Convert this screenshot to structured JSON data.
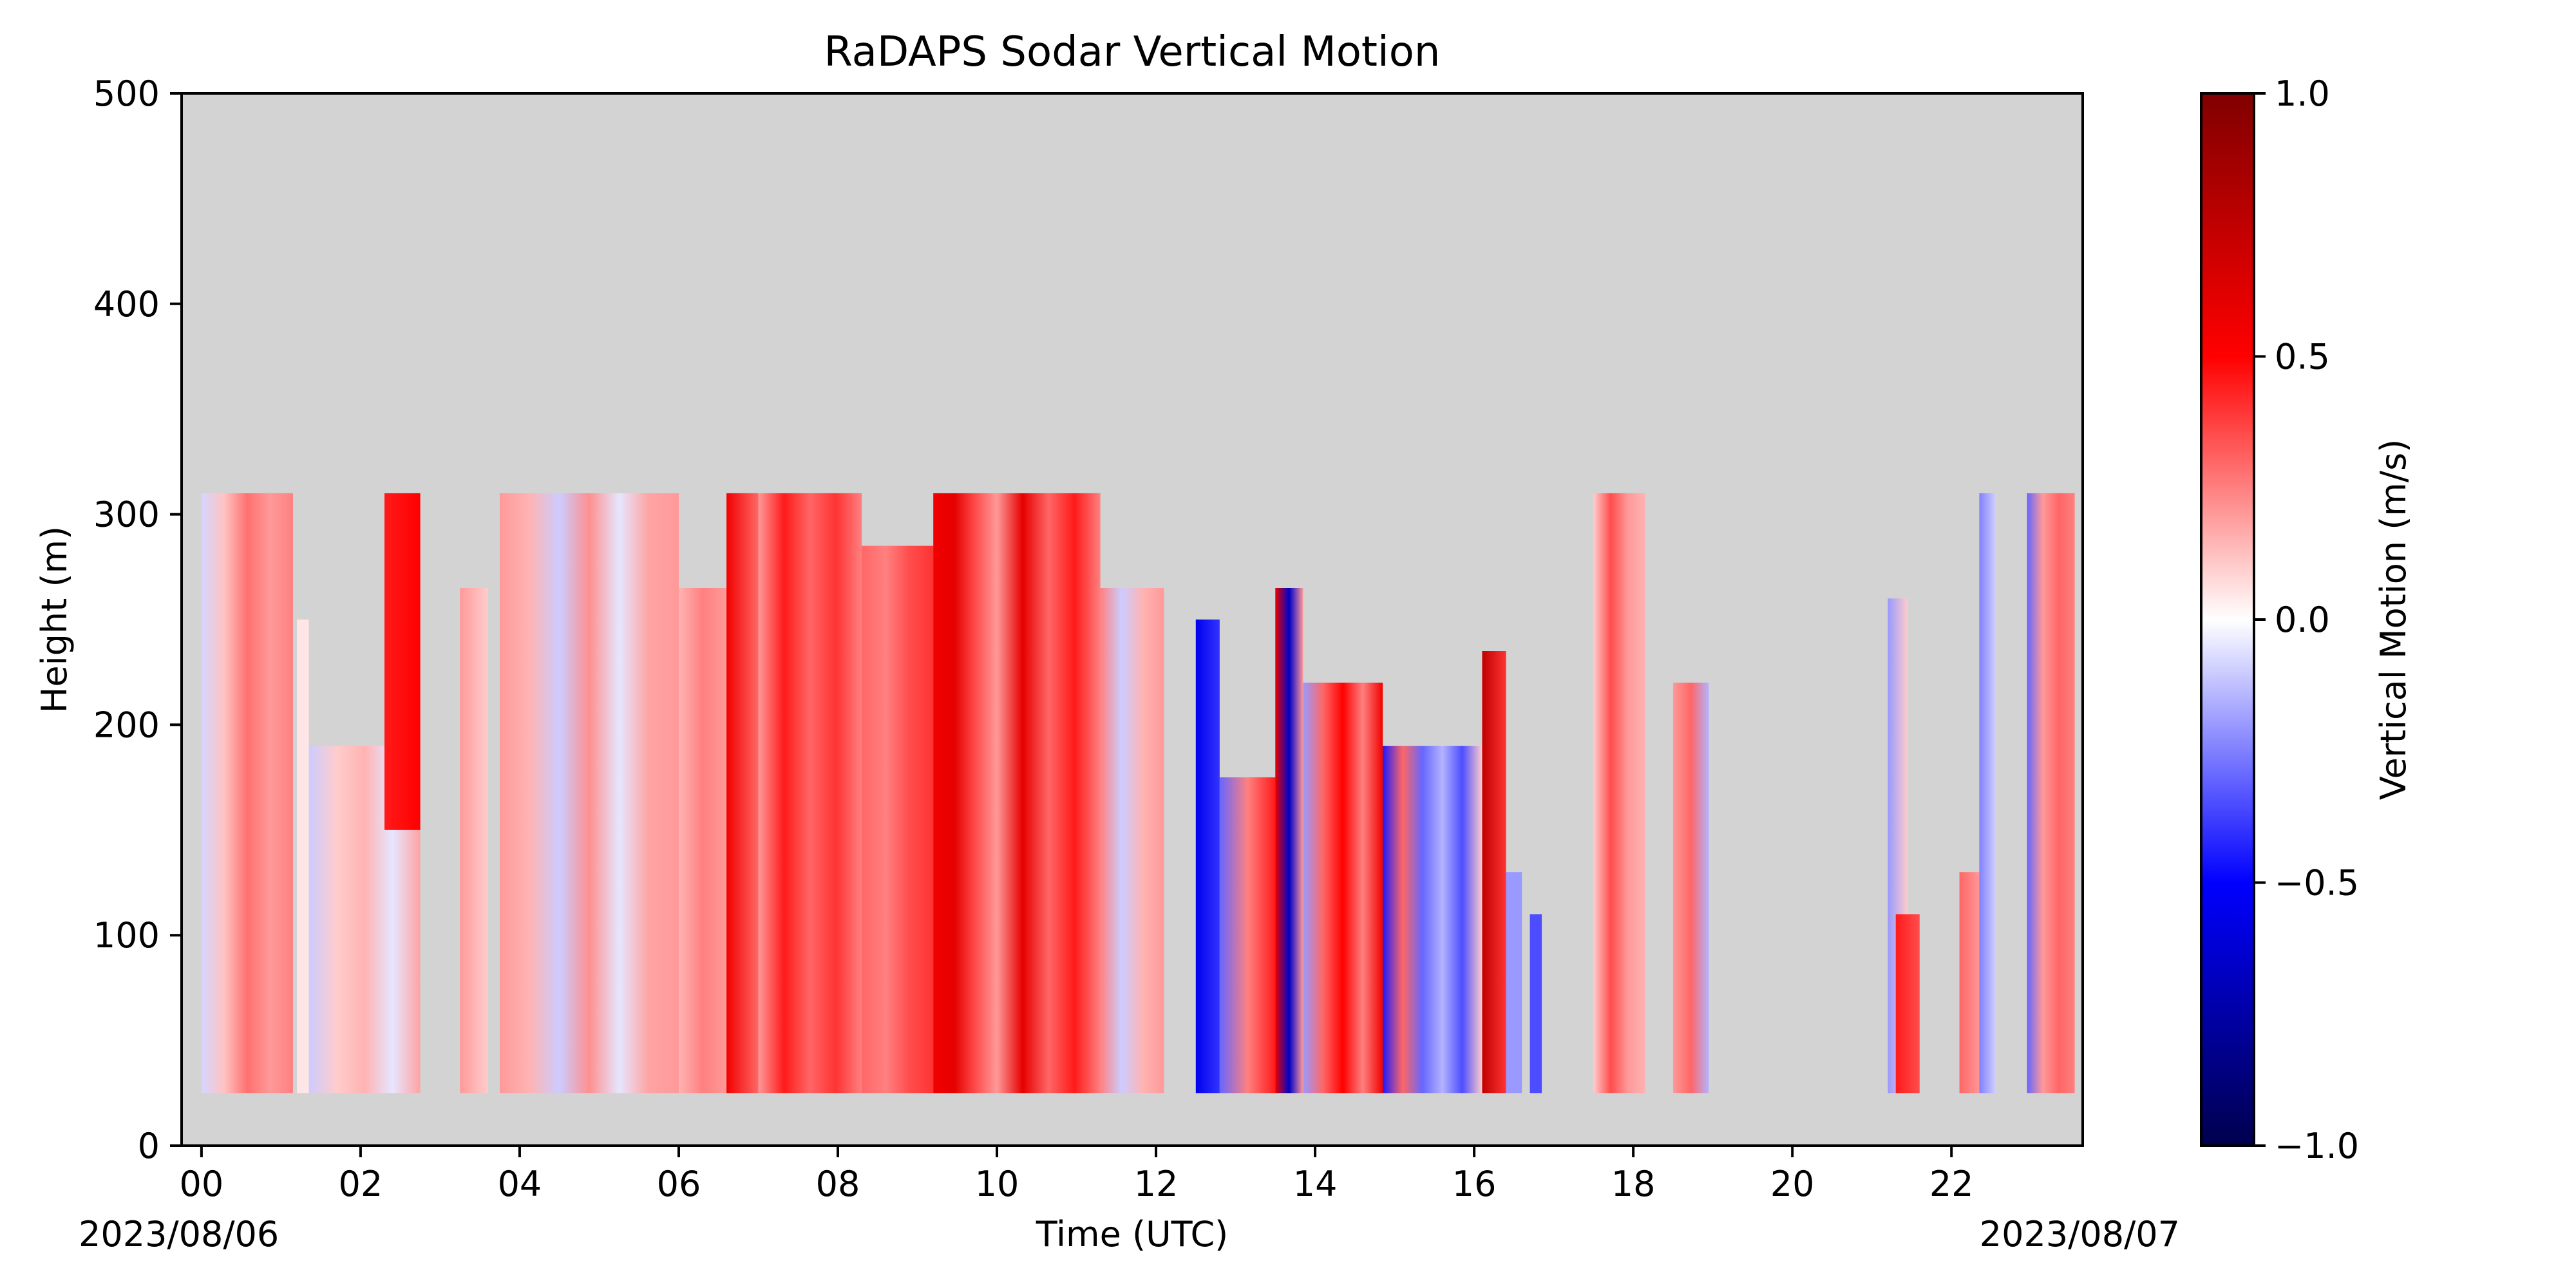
{
  "chart_data": {
    "type": "heatmap",
    "title": "RaDAPS Sodar Vertical Motion",
    "xlabel": "Time (UTC)",
    "ylabel": "Height (m)",
    "xlim": [
      -0.25,
      23.65
    ],
    "ylim": [
      0,
      500
    ],
    "x_tick_values": [
      0,
      2,
      4,
      6,
      8,
      10,
      12,
      14,
      16,
      18,
      20,
      22
    ],
    "x_tick_labels": [
      "00",
      "02",
      "04",
      "06",
      "08",
      "10",
      "12",
      "14",
      "16",
      "18",
      "20",
      "22"
    ],
    "y_tick_values": [
      0,
      100,
      200,
      300,
      400,
      500
    ],
    "y_tick_labels": [
      "0",
      "100",
      "200",
      "300",
      "400",
      "500"
    ],
    "start_date_label": "2023/08/06",
    "end_date_label": "2023/08/07",
    "missing_color": "#d3d3d3",
    "colorbar": {
      "label": "Vertical Motion (m/s)",
      "colormap": "seismic",
      "vmin": -1.0,
      "vmax": 1.0,
      "tick_values": [
        1.0,
        0.5,
        0.0,
        -0.5,
        -1.0
      ],
      "tick_labels": [
        "1.0",
        "0.5",
        "0.0",
        "−0.5",
        "−1.0"
      ],
      "stops": [
        {
          "v": -1.0,
          "color": "#00004d"
        },
        {
          "v": -0.5,
          "color": "#0000ff"
        },
        {
          "v": 0.0,
          "color": "#ffffff"
        },
        {
          "v": 0.5,
          "color": "#ff0000"
        },
        {
          "v": 1.0,
          "color": "#800000"
        }
      ]
    },
    "series": [
      {
        "start": 0.0,
        "end": 1.15,
        "bottom": 25,
        "top": 310,
        "values": [
          -0.08,
          0.12,
          0.28,
          0.2,
          0.25
        ]
      },
      {
        "start": 1.2,
        "end": 1.35,
        "bottom": 25,
        "top": 250,
        "values": [
          0.05
        ]
      },
      {
        "start": 1.35,
        "end": 2.75,
        "bottom": 25,
        "top": 190,
        "values": [
          -0.1,
          0.1,
          0.15,
          -0.05,
          0.18
        ]
      },
      {
        "start": 2.3,
        "end": 2.75,
        "bottom": 150,
        "top": 310,
        "values": [
          0.45,
          0.5
        ]
      },
      {
        "start": 3.25,
        "end": 3.6,
        "bottom": 25,
        "top": 265,
        "values": [
          0.2,
          0.1
        ]
      },
      {
        "start": 3.75,
        "end": 6.0,
        "bottom": 25,
        "top": 310,
        "values": [
          0.2,
          0.15,
          -0.1,
          0.22,
          -0.05,
          0.18,
          0.2
        ]
      },
      {
        "start": 6.0,
        "end": 6.6,
        "bottom": 25,
        "top": 265,
        "values": [
          0.15,
          0.25,
          0.2
        ]
      },
      {
        "start": 6.6,
        "end": 7.0,
        "bottom": 25,
        "top": 310,
        "values": [
          0.55,
          0.3
        ]
      },
      {
        "start": 7.0,
        "end": 8.3,
        "bottom": 25,
        "top": 310,
        "values": [
          0.2,
          0.45,
          0.3,
          0.4,
          0.25
        ]
      },
      {
        "start": 8.3,
        "end": 9.2,
        "bottom": 25,
        "top": 285,
        "values": [
          0.3,
          0.25,
          0.35,
          0.4
        ]
      },
      {
        "start": 9.2,
        "end": 10.0,
        "bottom": 25,
        "top": 310,
        "values": [
          0.55,
          0.6,
          0.35,
          0.2
        ]
      },
      {
        "start": 10.0,
        "end": 11.3,
        "bottom": 25,
        "top": 310,
        "values": [
          0.2,
          0.6,
          0.3,
          0.45,
          0.25
        ]
      },
      {
        "start": 11.3,
        "end": 12.1,
        "bottom": 25,
        "top": 265,
        "values": [
          0.25,
          -0.1,
          0.15,
          0.2
        ]
      },
      {
        "start": 12.5,
        "end": 12.8,
        "bottom": 25,
        "top": 250,
        "values": [
          -0.55,
          -0.4
        ]
      },
      {
        "start": 12.8,
        "end": 13.5,
        "bottom": 25,
        "top": 175,
        "values": [
          -0.3,
          0.25,
          0.45
        ]
      },
      {
        "start": 13.5,
        "end": 13.85,
        "bottom": 25,
        "top": 265,
        "values": [
          0.6,
          -0.65,
          0.2
        ]
      },
      {
        "start": 13.85,
        "end": 14.85,
        "bottom": 25,
        "top": 220,
        "values": [
          -0.2,
          0.3,
          0.5,
          0.25,
          0.55
        ]
      },
      {
        "start": 14.85,
        "end": 16.1,
        "bottom": 25,
        "top": 190,
        "values": [
          -0.45,
          0.3,
          -0.3,
          -0.15,
          -0.35,
          0.1
        ]
      },
      {
        "start": 16.1,
        "end": 16.4,
        "bottom": 25,
        "top": 235,
        "values": [
          0.75,
          0.4
        ]
      },
      {
        "start": 16.4,
        "end": 16.6,
        "bottom": 25,
        "top": 130,
        "values": [
          -0.2
        ]
      },
      {
        "start": 16.7,
        "end": 16.85,
        "bottom": 25,
        "top": 110,
        "values": [
          -0.35
        ]
      },
      {
        "start": 17.5,
        "end": 18.15,
        "bottom": 25,
        "top": 310,
        "values": [
          0.1,
          0.35,
          0.2,
          0.15
        ]
      },
      {
        "start": 18.5,
        "end": 18.95,
        "bottom": 25,
        "top": 220,
        "values": [
          0.2,
          0.3,
          -0.15
        ]
      },
      {
        "start": 21.2,
        "end": 21.45,
        "bottom": 25,
        "top": 260,
        "values": [
          -0.2,
          0.1
        ]
      },
      {
        "start": 21.3,
        "end": 21.6,
        "bottom": 25,
        "top": 110,
        "values": [
          0.45,
          0.35
        ]
      },
      {
        "start": 22.1,
        "end": 22.5,
        "bottom": 25,
        "top": 130,
        "values": [
          0.3,
          0.15
        ]
      },
      {
        "start": 22.35,
        "end": 22.55,
        "bottom": 25,
        "top": 310,
        "values": [
          -0.25,
          -0.1
        ]
      },
      {
        "start": 22.95,
        "end": 23.55,
        "bottom": 25,
        "top": 310,
        "values": [
          -0.3,
          0.2,
          0.3,
          0.25
        ]
      }
    ]
  }
}
